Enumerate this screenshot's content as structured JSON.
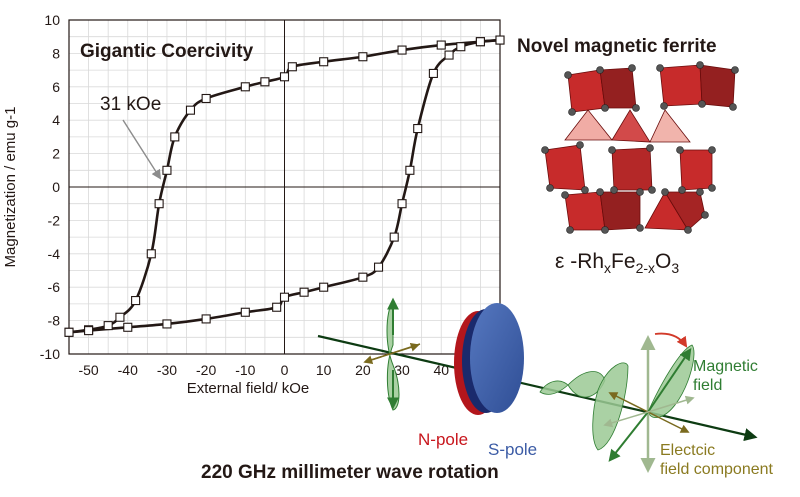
{
  "chart_data": {
    "type": "line",
    "xlabel": "External field/ kOe",
    "ylabel": "Magnetization / emu g-1",
    "xlim": [
      -55,
      55
    ],
    "ylim": [
      -10,
      10
    ],
    "grid": true,
    "x_ticks": [
      -50,
      -40,
      -30,
      -20,
      -10,
      0,
      10,
      20,
      30,
      40
    ],
    "y_ticks": [
      -10,
      -8,
      -6,
      -4,
      -2,
      0,
      2,
      4,
      6,
      8,
      10
    ],
    "series": [
      {
        "branch": "descending",
        "x": [
          55,
          50,
          40,
          30,
          20,
          10,
          2,
          0,
          -5,
          -10,
          -20,
          -24,
          -28,
          -30,
          -32,
          -34,
          -38,
          -42,
          -45,
          -50,
          -55
        ],
        "y": [
          8.8,
          8.7,
          8.5,
          8.2,
          7.8,
          7.5,
          7.2,
          6.6,
          6.3,
          6.0,
          5.3,
          4.6,
          3.0,
          1.0,
          -1.0,
          -4.0,
          -6.8,
          -7.8,
          -8.3,
          -8.55,
          -8.7
        ]
      },
      {
        "branch": "ascending",
        "x": [
          -55,
          -50,
          -40,
          -30,
          -20,
          -10,
          -2,
          0,
          5,
          10,
          20,
          24,
          28,
          30,
          32,
          34,
          38,
          42,
          45,
          50,
          55
        ],
        "y": [
          -8.7,
          -8.6,
          -8.4,
          -8.2,
          -7.9,
          -7.5,
          -7.2,
          -6.6,
          -6.3,
          -6.0,
          -5.4,
          -4.8,
          -3.0,
          -1.0,
          1.0,
          3.5,
          6.8,
          7.9,
          8.4,
          8.7,
          8.8
        ]
      }
    ],
    "annotation": "31 kOe"
  },
  "headings": {
    "coercivity": "Gigantic Coercivity",
    "ferrite": "Novel magnetic ferrite",
    "rotation": "220 GHz millimeter wave rotation"
  },
  "formula": {
    "prefix": "ε -Rh",
    "sub1": "x",
    "mid": "Fe",
    "sub2": "2-x",
    "end": "O",
    "sub3": "3"
  },
  "illustration": {
    "n_pole": "N-pole",
    "s_pole": "S-pole",
    "magnetic_field": "Magnetic field",
    "electric_field": "Electcic field component"
  },
  "colors": {
    "curve": "#231815",
    "red": "#c8161d",
    "blue": "#3b5ba5",
    "green": "#2f7d32",
    "wave_fill": "#9bc994",
    "crystal_red": "#c42020"
  }
}
